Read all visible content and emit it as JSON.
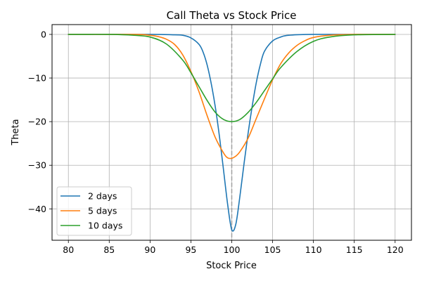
{
  "chart_data": {
    "type": "line",
    "title": "Call Theta vs Stock Price",
    "xlabel": "Stock Price",
    "ylabel": "Theta",
    "xlim": [
      78,
      122
    ],
    "ylim": [
      -47.2,
      2.25
    ],
    "x_ticks": [
      80,
      85,
      90,
      95,
      100,
      105,
      110,
      115,
      120
    ],
    "y_ticks": [
      0,
      -10,
      -20,
      -30,
      -40
    ],
    "grid": true,
    "legend_position": "lower-left",
    "reference_line": {
      "orientation": "vertical",
      "x": 100,
      "style": "dashed",
      "color": "#a0a0a0"
    },
    "series": [
      {
        "name": "2 days",
        "color": "#1f77b4",
        "x": [
          80,
          90,
          93,
          94,
          95,
          96,
          96.5,
          97,
          97.5,
          98,
          98.5,
          99,
          99.5,
          100,
          100.5,
          101,
          101.5,
          102,
          102.5,
          103,
          103.5,
          104,
          105,
          106,
          107,
          110,
          120
        ],
        "y": [
          0,
          0,
          -0.1,
          -0.2,
          -0.8,
          -2.3,
          -4.1,
          -7.1,
          -11.4,
          -16.8,
          -23.5,
          -31.2,
          -39.0,
          -44.8,
          -43.5,
          -37.1,
          -29.7,
          -22.7,
          -16.5,
          -11.1,
          -6.9,
          -3.9,
          -1.5,
          -0.6,
          -0.2,
          0,
          0
        ]
      },
      {
        "name": "5 days",
        "color": "#ff7f0e",
        "x": [
          80,
          88,
          90,
          91,
          92,
          93,
          94,
          95,
          96,
          97,
          98,
          99,
          99.5,
          100,
          100.5,
          101,
          102,
          103,
          104,
          105,
          106,
          107,
          108,
          109,
          110,
          112,
          115,
          120
        ],
        "y": [
          0,
          0,
          -0.2,
          -0.5,
          -1.1,
          -2.3,
          -4.7,
          -8.5,
          -13.2,
          -18.7,
          -23.7,
          -27.2,
          -28.3,
          -28.4,
          -27.9,
          -26.9,
          -23.8,
          -19.3,
          -14.8,
          -10.4,
          -6.7,
          -4.2,
          -2.5,
          -1.4,
          -0.7,
          -0.2,
          0,
          0
        ]
      },
      {
        "name": "10 days",
        "color": "#2ca02c",
        "x": [
          80,
          85,
          88,
          90,
          92,
          94,
          95,
          96,
          97,
          98,
          99,
          100,
          101,
          102,
          103,
          104,
          105,
          106,
          108,
          110,
          112,
          115,
          120
        ],
        "y": [
          0,
          0,
          -0.2,
          -0.6,
          -2.2,
          -5.9,
          -8.8,
          -12.0,
          -15.2,
          -17.9,
          -19.5,
          -20.0,
          -19.5,
          -17.9,
          -15.6,
          -12.9,
          -10.2,
          -7.6,
          -3.9,
          -1.6,
          -0.6,
          -0.1,
          0
        ]
      }
    ]
  }
}
